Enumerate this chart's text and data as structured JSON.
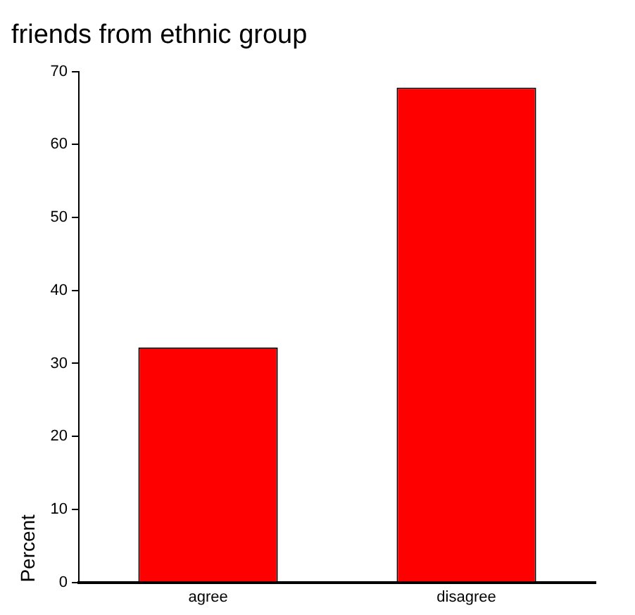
{
  "chart_data": {
    "type": "bar",
    "title": "friends from ethnic group",
    "ylabel": "Percent",
    "categories": [
      "agree",
      "disagree"
    ],
    "values": [
      32.2,
      67.8
    ],
    "color": "#ff0000",
    "ylim": [
      0,
      70
    ],
    "yticks": [
      0,
      10,
      20,
      30,
      40,
      50,
      60,
      70
    ],
    "grid": false,
    "legend": false
  }
}
